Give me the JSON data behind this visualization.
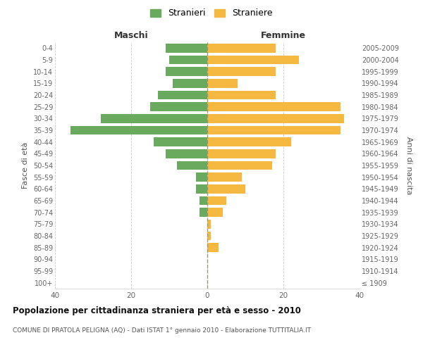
{
  "age_groups": [
    "100+",
    "95-99",
    "90-94",
    "85-89",
    "80-84",
    "75-79",
    "70-74",
    "65-69",
    "60-64",
    "55-59",
    "50-54",
    "45-49",
    "40-44",
    "35-39",
    "30-34",
    "25-29",
    "20-24",
    "15-19",
    "10-14",
    "5-9",
    "0-4"
  ],
  "birth_years": [
    "≤ 1909",
    "1910-1914",
    "1915-1919",
    "1920-1924",
    "1925-1929",
    "1930-1934",
    "1935-1939",
    "1940-1944",
    "1945-1949",
    "1950-1954",
    "1955-1959",
    "1960-1964",
    "1965-1969",
    "1970-1974",
    "1975-1979",
    "1980-1984",
    "1985-1989",
    "1990-1994",
    "1995-1999",
    "2000-2004",
    "2005-2009"
  ],
  "males": [
    0,
    0,
    0,
    0,
    0,
    0,
    2,
    2,
    3,
    3,
    8,
    11,
    14,
    36,
    28,
    15,
    13,
    9,
    11,
    10,
    11
  ],
  "females": [
    0,
    0,
    0,
    3,
    1,
    1,
    4,
    5,
    10,
    9,
    17,
    18,
    22,
    35,
    36,
    35,
    18,
    8,
    18,
    24,
    18
  ],
  "male_color": "#6aaa5e",
  "female_color": "#f5b942",
  "background_color": "#ffffff",
  "grid_color": "#cccccc",
  "xlim": 40,
  "title": "Popolazione per cittadinanza straniera per età e sesso - 2010",
  "subtitle": "COMUNE DI PRATOLA PELIGNA (AQ) - Dati ISTAT 1° gennaio 2010 - Elaborazione TUTTITALIA.IT",
  "xlabel_left": "Maschi",
  "xlabel_right": "Femmine",
  "ylabel_left": "Fasce di età",
  "ylabel_right": "Anni di nascita",
  "legend_male": "Stranieri",
  "legend_female": "Straniere",
  "bar_height": 0.75
}
